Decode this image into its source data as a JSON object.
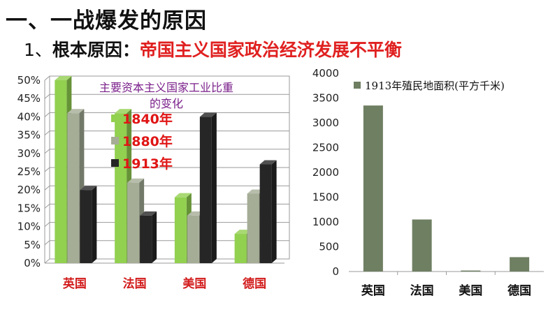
{
  "heading": "一、一战爆发的原因",
  "subheading": {
    "number": "1、",
    "label": "根本原因：",
    "highlight": "帝国主义国家政治经济发展不平衡"
  },
  "colors": {
    "c1840_front": "#92d050",
    "c1880_front": "#a5ad96",
    "c1913_front": "#262626",
    "c2_bar": "#6f7f62",
    "heading_red": "#e02020"
  },
  "chart_data": [
    {
      "type": "bar",
      "title": "主要资本主义国家工业比重的变化",
      "title_lines": [
        "主要资本主义国家工业比重",
        "的变化"
      ],
      "categories": [
        "英国",
        "法国",
        "美国",
        "德国"
      ],
      "series": [
        {
          "name": "1840年",
          "values": [
            50,
            41,
            18,
            8
          ]
        },
        {
          "name": "1880年",
          "values": [
            41,
            22,
            13,
            19
          ]
        },
        {
          "name": "1913年",
          "values": [
            20,
            13,
            40,
            27
          ]
        }
      ],
      "ylim": [
        0,
        50
      ],
      "yticks": [
        "0%",
        "5%",
        "10%",
        "15%",
        "20%",
        "25%",
        "30%",
        "35%",
        "40%",
        "45%",
        "50%"
      ],
      "grid": true,
      "legend": "inside-left",
      "style": "3d"
    },
    {
      "type": "bar",
      "categories": [
        "英国",
        "法国",
        "美国",
        "德国"
      ],
      "series": [
        {
          "name": "1913年殖民地面积(平方千米)",
          "values": [
            3350,
            1050,
            20,
            290
          ]
        }
      ],
      "ylim": [
        0,
        4000
      ],
      "yticks": [
        "0",
        "500",
        "1000",
        "1500",
        "2000",
        "2500",
        "3000",
        "3500",
        "4000"
      ],
      "grid": false,
      "legend": "top-left"
    }
  ]
}
